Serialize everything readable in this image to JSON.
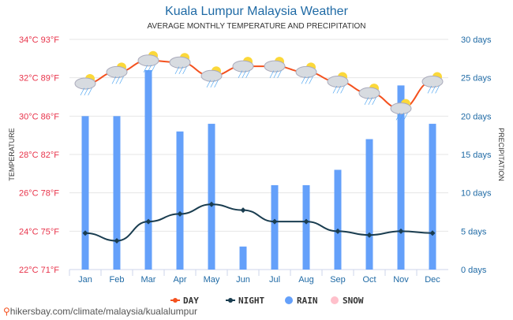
{
  "chart_data": {
    "type": "bar+line",
    "title": "Kuala Lumpur Malaysia Weather",
    "subtitle": "AVERAGE MONTHLY TEMPERATURE AND PRECIPITATION",
    "ylabel_left": "TEMPERATURE",
    "ylabel_right": "PRECIPITATION",
    "categories": [
      "Jan",
      "Feb",
      "Mar",
      "Apr",
      "May",
      "Jun",
      "Jul",
      "Aug",
      "Sep",
      "Oct",
      "Nov",
      "Dec"
    ],
    "left_ticks": [
      "22°C 71°F",
      "24°C 75°F",
      "26°C 78°F",
      "28°C 82°F",
      "30°C 86°F",
      "32°C 89°F",
      "34°C 93°F"
    ],
    "right_ticks": [
      "0 days",
      "5 days",
      "10 days",
      "15 days",
      "20 days",
      "25 days",
      "30 days"
    ],
    "ylim_left": [
      22,
      34
    ],
    "ylim_right": [
      0,
      30
    ],
    "series": [
      {
        "name": "DAY",
        "color": "#f4511e",
        "values": [
          31.7,
          32.3,
          32.9,
          32.8,
          32.1,
          32.6,
          32.6,
          32.3,
          31.8,
          31.2,
          30.4,
          31.8
        ]
      },
      {
        "name": "NIGHT",
        "color": "#1a3d50",
        "values": [
          23.9,
          23.5,
          24.5,
          24.9,
          25.4,
          25.1,
          24.5,
          24.5,
          24.0,
          23.8,
          24.0,
          23.9
        ]
      },
      {
        "name": "RAIN",
        "color": "#64a0fa",
        "values": [
          20,
          20,
          26,
          18,
          19,
          3,
          11,
          11,
          13,
          17,
          24,
          19
        ]
      },
      {
        "name": "SNOW",
        "color": "#ffc0cb",
        "values": [
          0,
          0,
          0,
          0,
          0,
          0,
          0,
          0,
          0,
          0,
          0,
          0
        ]
      }
    ],
    "legend_position": "bottom"
  },
  "footer": "hikersbay.com/climate/malaysia/kualalumpur"
}
